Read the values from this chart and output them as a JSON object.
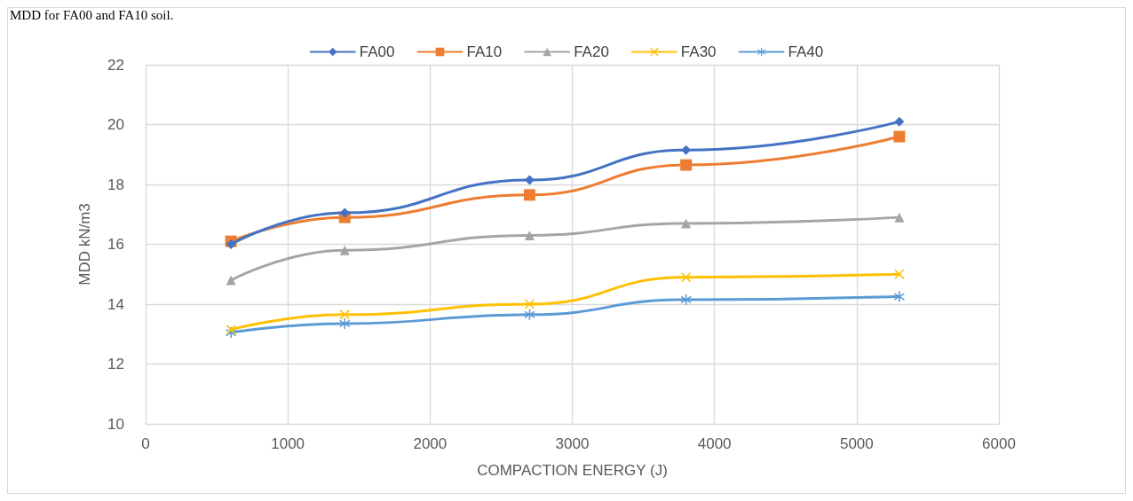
{
  "chart_data": {
    "type": "line",
    "xlabel": "COMPACTION ENERGY (J)",
    "ylabel": "MDD kN/m3",
    "annotations": [
      "MDD for FA00 and FA10 soil."
    ],
    "x": [
      600,
      1400,
      2700,
      3800,
      5300
    ],
    "series": [
      {
        "name": "FA00",
        "color": "#4472c4",
        "marker": "diamond",
        "values": [
          16.0,
          17.05,
          18.15,
          19.15,
          20.1
        ]
      },
      {
        "name": "FA10",
        "color": "#ed7d31",
        "marker": "square",
        "values": [
          16.1,
          16.9,
          17.65,
          18.65,
          19.6
        ]
      },
      {
        "name": "FA20",
        "color": "#a5a5a5",
        "marker": "triangle",
        "values": [
          14.8,
          15.8,
          16.3,
          16.7,
          16.9
        ]
      },
      {
        "name": "FA30",
        "color": "#ffc000",
        "marker": "cross",
        "values": [
          13.15,
          13.65,
          14.0,
          14.9,
          15.0
        ]
      },
      {
        "name": "FA40",
        "color": "#5b9bd5",
        "marker": "star",
        "values": [
          13.05,
          13.35,
          13.65,
          14.15,
          14.25
        ]
      }
    ],
    "xlim": [
      0,
      6000
    ],
    "xticks": [
      0,
      1000,
      2000,
      3000,
      4000,
      5000,
      6000
    ],
    "ylim": [
      10,
      22
    ],
    "yticks": [
      10,
      12,
      14,
      16,
      18,
      20,
      22
    ],
    "grid": true,
    "legend": "top",
    "line_style": "solid"
  }
}
